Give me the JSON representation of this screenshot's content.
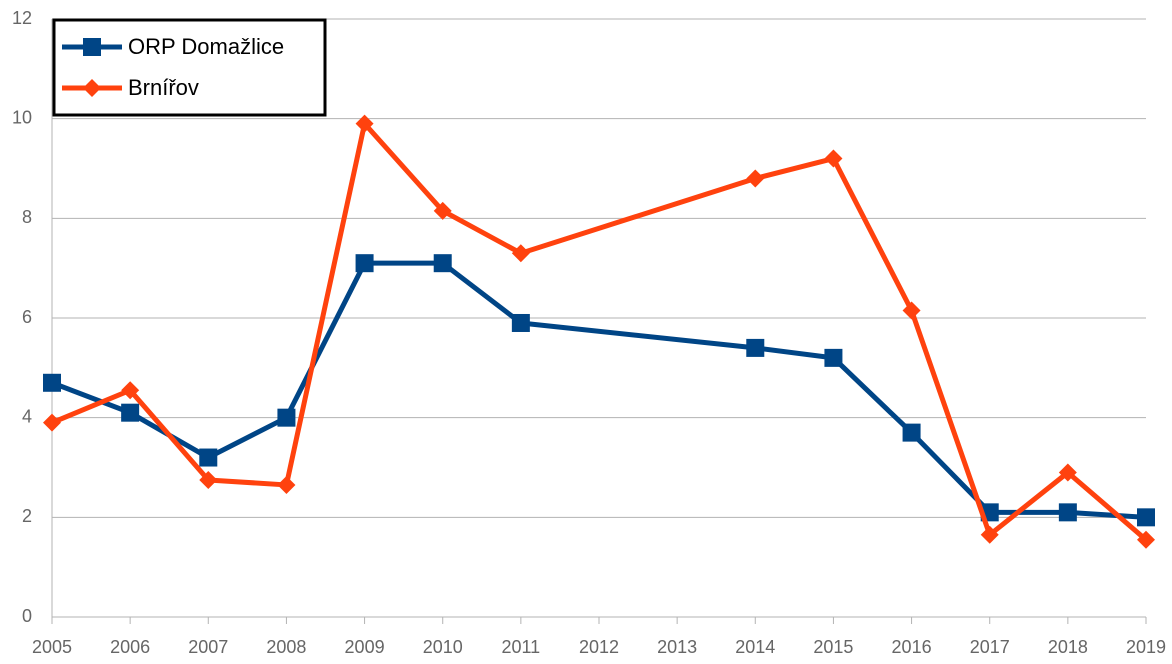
{
  "chart_data": {
    "type": "line",
    "x": [
      2005,
      2006,
      2007,
      2008,
      2009,
      2010,
      2011,
      2014,
      2015,
      2016,
      2017,
      2018,
      2019
    ],
    "series": [
      {
        "name": "ORP Domažlice",
        "color": "#004586",
        "marker": "square",
        "values": [
          4.7,
          4.1,
          3.2,
          4.0,
          7.1,
          7.1,
          5.9,
          5.4,
          5.2,
          3.7,
          2.1,
          2.1,
          2.0
        ]
      },
      {
        "name": "Brnířov",
        "color": "#ff420e",
        "marker": "diamond",
        "values": [
          3.9,
          4.55,
          2.75,
          2.65,
          9.9,
          8.15,
          7.3,
          8.8,
          9.2,
          6.15,
          1.65,
          2.9,
          1.55
        ]
      }
    ],
    "xlim": [
      2005,
      2019
    ],
    "xticks": [
      2005,
      2006,
      2007,
      2008,
      2009,
      2010,
      2011,
      2012,
      2013,
      2014,
      2015,
      2016,
      2017,
      2018,
      2019
    ],
    "ylim": [
      0,
      12
    ],
    "yticks": [
      0,
      2,
      4,
      6,
      8,
      10,
      12
    ],
    "grid": true,
    "legend": "top-left"
  }
}
